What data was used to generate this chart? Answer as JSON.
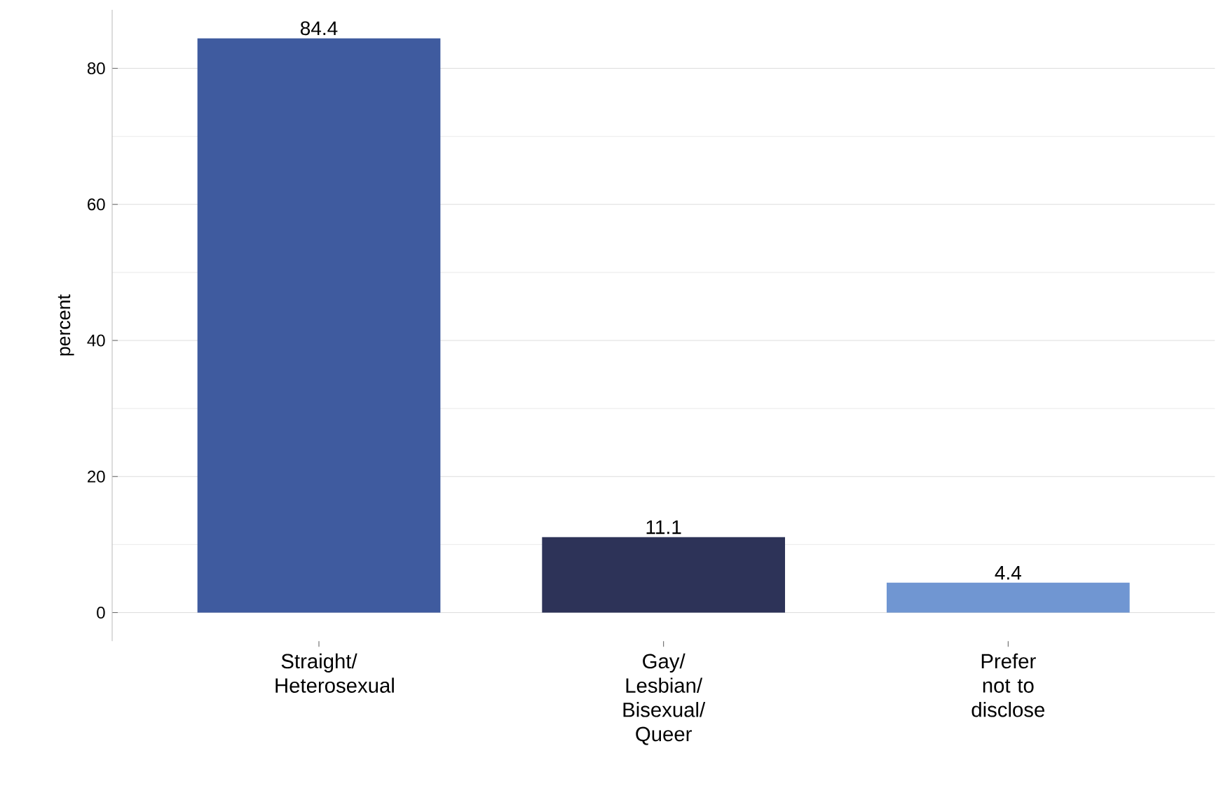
{
  "chart_data": {
    "type": "bar",
    "ylabel": "percent",
    "categories": [
      "Straight/ Heterosexual",
      "Gay/ Lesbian/ Bisexual/ Queer",
      "Prefer not to disclose"
    ],
    "values": [
      84.4,
      11.1,
      4.4
    ],
    "colors": [
      "#3f5b9f",
      "#2d3358",
      "#7096d2"
    ],
    "ylim": [
      -4.2,
      88.6
    ],
    "yticks": [
      0,
      20,
      40,
      60,
      80
    ],
    "grid": "y",
    "data_labels": true
  }
}
